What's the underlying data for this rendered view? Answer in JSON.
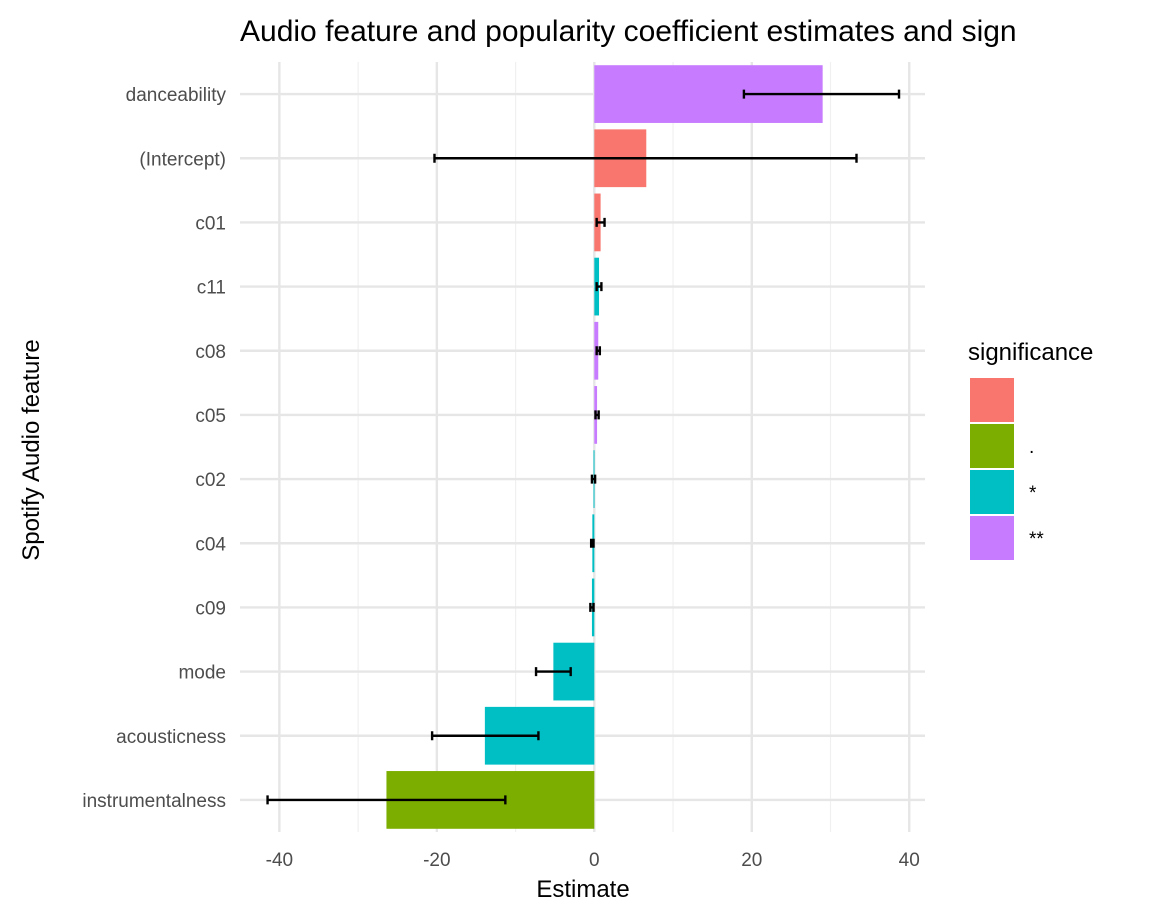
{
  "chart_data": {
    "type": "bar",
    "orientation": "horizontal",
    "title": "Audio feature and popularity coefficient estimates and sign",
    "xlabel": "Estimate",
    "ylabel": "Spotify Audio feature",
    "xlim": [
      -45,
      42
    ],
    "xticks": [
      -40,
      -20,
      0,
      20,
      40
    ],
    "xtick_labels": [
      "-40",
      "-20",
      "0",
      "20",
      "40"
    ],
    "grid": true,
    "legend_position": "right",
    "legend": {
      "title": "significance",
      "entries": [
        {
          "label": "",
          "color": "#F8766D"
        },
        {
          "label": ".",
          "color": "#7CAE00"
        },
        {
          "label": "*",
          "color": "#00BFC4"
        },
        {
          "label": "**",
          "color": "#C77CFF"
        }
      ]
    },
    "categories": [
      "danceability",
      "(Intercept)",
      "c01",
      "c11",
      "c08",
      "c05",
      "c02",
      "c04",
      "c09",
      "mode",
      "acousticness",
      "instrumentalness"
    ],
    "values": [
      29.0,
      6.6,
      0.8,
      0.6,
      0.5,
      0.35,
      -0.1,
      -0.25,
      -0.3,
      -5.2,
      -13.9,
      -26.4
    ],
    "error_low": [
      19.0,
      -20.3,
      0.3,
      0.3,
      0.3,
      0.15,
      -0.3,
      -0.4,
      -0.5,
      -7.4,
      -20.6,
      -41.5
    ],
    "error_high": [
      38.7,
      33.3,
      1.3,
      0.9,
      0.7,
      0.55,
      0.1,
      -0.1,
      -0.1,
      -3.0,
      -7.1,
      -11.3
    ],
    "significance": [
      "**",
      "",
      "",
      "*",
      "**",
      "**",
      "*",
      "*",
      "*",
      "*",
      "*",
      "."
    ]
  }
}
